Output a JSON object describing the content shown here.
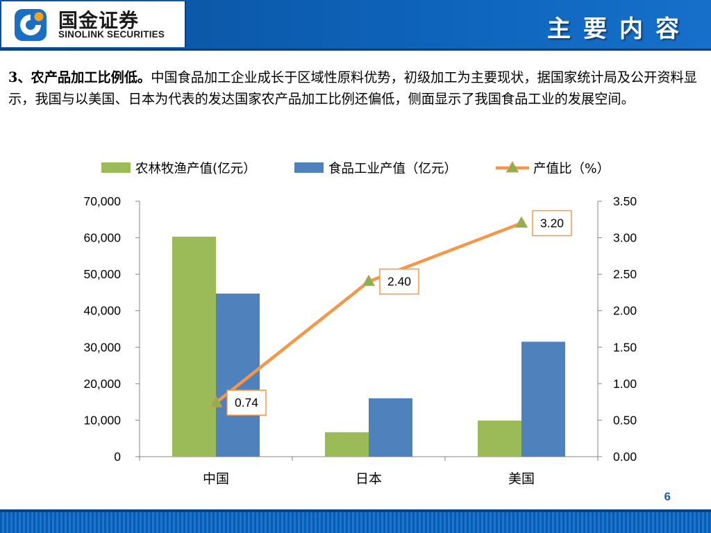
{
  "header": {
    "logo_cn": "国金证券",
    "logo_en": "SINOLINK SECURITIES",
    "title": "主要内容"
  },
  "body": {
    "lead": "3、农产品加工比例低。",
    "text": "中国食品加工企业成长于区域性原料优势，初级加工为主要现状，据国家统计局及公开资料显示，我国与以美国、日本为代表的发达国家农产品加工比例还偏低，侧面显示了我国食品工业的发展空间。"
  },
  "page_number": "6",
  "colors": {
    "header_blue": "#0d62b8",
    "bar_green": "#9bbb59",
    "bar_blue": "#4f81bd",
    "line_orange": "#f79646",
    "marker_green": "#8db04f",
    "label_border": "#f79646"
  },
  "chart_data": {
    "type": "bar",
    "combo": "bar+line",
    "categories": [
      "中国",
      "日本",
      "美国"
    ],
    "series": [
      {
        "name": "农林牧渔产值(亿元）",
        "type": "bar",
        "axis": "left",
        "color": "#9bbb59",
        "values": [
          60300,
          6700,
          9900
        ]
      },
      {
        "name": "食品工业产值（亿元）",
        "type": "bar",
        "axis": "left",
        "color": "#4f81bd",
        "values": [
          44700,
          16000,
          31500
        ]
      },
      {
        "name": "产值比（%）",
        "type": "line",
        "axis": "right",
        "color": "#f79646",
        "marker": "triangle",
        "values": [
          0.74,
          2.4,
          3.2
        ],
        "data_labels": [
          "0.74",
          "2.40",
          "3.20"
        ]
      }
    ],
    "y_left": {
      "min": 0,
      "max": 70000,
      "step": 10000,
      "tick_labels": [
        "0",
        "10,000",
        "20,000",
        "30,000",
        "40,000",
        "50,000",
        "60,000",
        "70,000"
      ]
    },
    "y_right": {
      "min": 0,
      "max": 3.5,
      "step": 0.5,
      "tick_labels": [
        "0.00",
        "0.50",
        "1.00",
        "1.50",
        "2.00",
        "2.50",
        "3.00",
        "3.50"
      ]
    },
    "legend": "top",
    "grid": false
  }
}
